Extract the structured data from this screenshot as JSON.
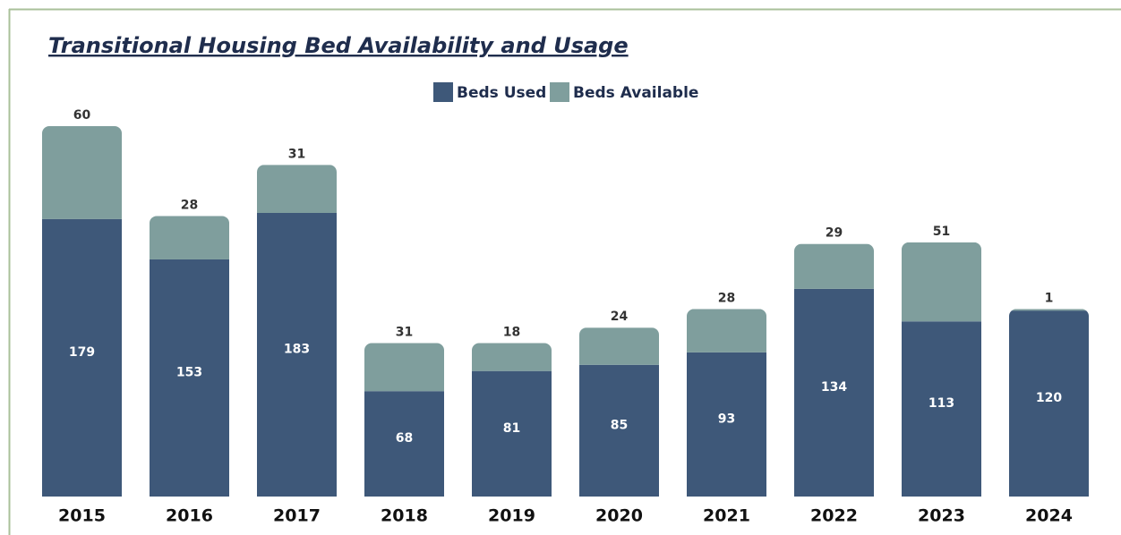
{
  "chart_data": {
    "type": "stacked_bar",
    "title": "Transitional Housing Bed Availability and Usage",
    "categories": [
      "2015",
      "2016",
      "2017",
      "2018",
      "2019",
      "2020",
      "2021",
      "2022",
      "2023",
      "2024"
    ],
    "series": [
      {
        "name": "Beds Used",
        "color": "#3e5879",
        "values": [
          179,
          153,
          183,
          68,
          81,
          85,
          93,
          134,
          113,
          120
        ]
      },
      {
        "name": "Beds Available",
        "color": "#7f9e9d",
        "values": [
          60,
          28,
          31,
          31,
          18,
          24,
          28,
          29,
          51,
          1
        ]
      }
    ],
    "legend": "top"
  }
}
